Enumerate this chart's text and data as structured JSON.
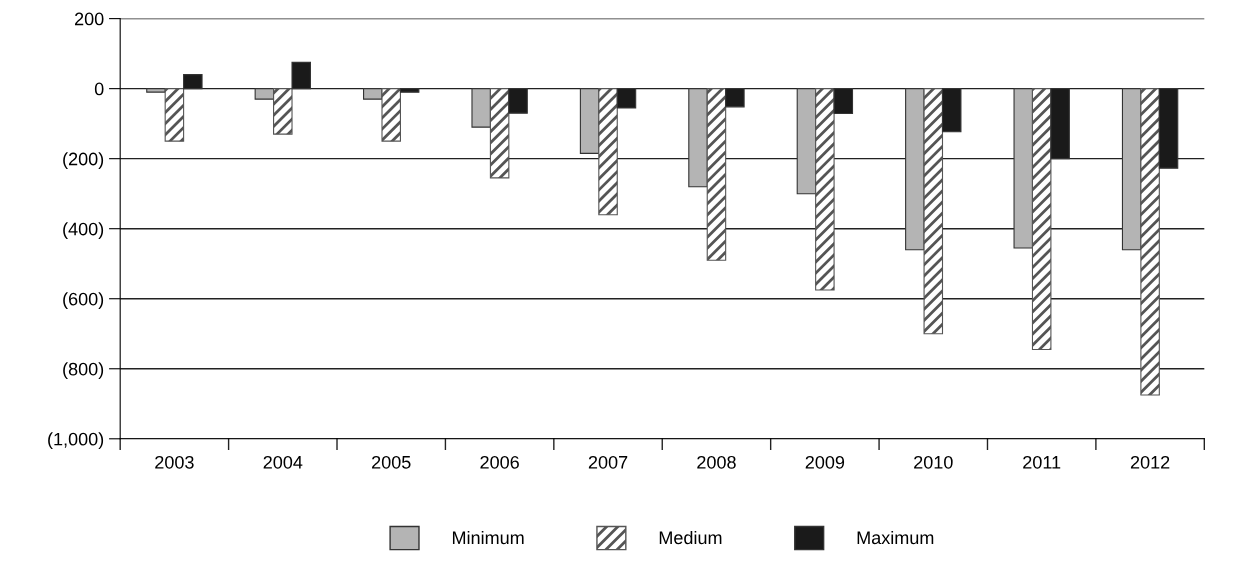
{
  "chart_data": {
    "type": "bar",
    "categories": [
      "2003",
      "2004",
      "2005",
      "2006",
      "2007",
      "2008",
      "2009",
      "2010",
      "2011",
      "2012"
    ],
    "series": [
      {
        "name": "Minimum",
        "color": "#b4b4b4",
        "values": [
          -10,
          -30,
          -30,
          -110,
          -185,
          -280,
          -300,
          -460,
          -455,
          -460
        ]
      },
      {
        "name": "Medium",
        "color": "#555555",
        "values": [
          -150,
          -130,
          -150,
          -255,
          -360,
          -490,
          -575,
          -700,
          -745,
          -875
        ]
      },
      {
        "name": "Maximum",
        "color": "#1a1a1a",
        "values": [
          40,
          75,
          -10,
          -70,
          -55,
          -52,
          -71,
          -123,
          -200,
          -227
        ]
      }
    ],
    "ylim": [
      -1000,
      200
    ],
    "yticks": [
      200,
      0,
      {
        "value": -200,
        "label": "(200)"
      },
      {
        "value": -400,
        "label": "(400)"
      },
      {
        "value": -600,
        "label": "(600)"
      },
      {
        "value": -800,
        "label": "(800)"
      },
      {
        "value": -1000,
        "label": "(1,000)"
      }
    ],
    "grid": "y",
    "legend": "bottom"
  }
}
